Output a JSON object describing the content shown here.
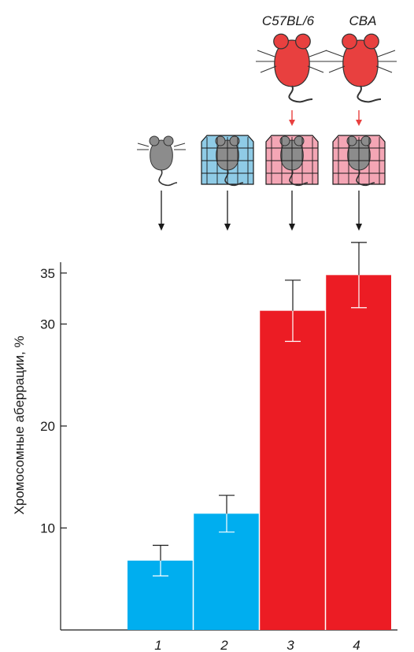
{
  "chart_data": {
    "type": "bar",
    "categories": [
      "1",
      "2",
      "3",
      "4"
    ],
    "values": [
      6.8,
      11.4,
      31.3,
      34.8
    ],
    "errors": [
      1.5,
      1.8,
      3.0,
      3.2
    ],
    "colors": [
      "#00aeef",
      "#00aeef",
      "#ec1c24",
      "#ec1c24"
    ],
    "ylabel": "Хромосомные аберрации, %",
    "yticks": [
      10,
      20,
      30,
      35
    ],
    "ylim": [
      0,
      36.5
    ],
    "grid": false
  },
  "illustration": {
    "strains": [
      {
        "label": "C57BL/6",
        "column": 3
      },
      {
        "label": "CBA",
        "column": 4
      }
    ],
    "cage_colors": [
      "none",
      "#8fcbe6",
      "#f4a6b5",
      "#f4a6b5"
    ],
    "mouse_color": "#8c8c8c",
    "stressor_mouse_color": "#e8403f",
    "arrow_color": "#1a1a1a",
    "red_arrow_color": "#e8403f"
  }
}
